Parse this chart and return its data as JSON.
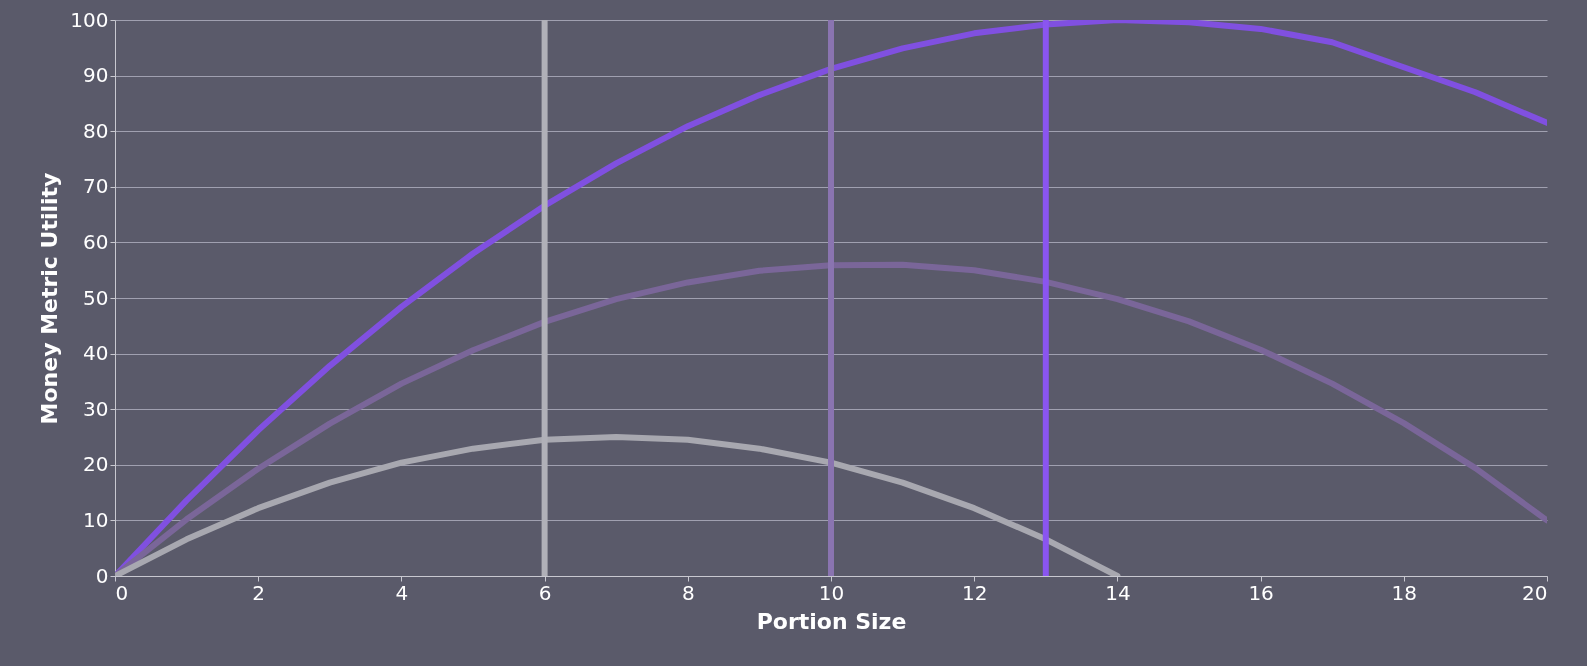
{
  "chart_data": {
    "type": "line",
    "xlabel": "Portion Size",
    "ylabel": "Money Metric Utility",
    "xlim": [
      0,
      20
    ],
    "xticks": [
      0,
      2,
      4,
      6,
      8,
      10,
      12,
      14,
      16,
      18,
      20
    ],
    "ylim": [
      0,
      100
    ],
    "yticks": [
      0,
      10,
      20,
      30,
      40,
      50,
      60,
      70,
      80,
      90,
      100
    ],
    "grid": "y",
    "marker": "none",
    "line_style": "solid",
    "series": [
      {
        "color": "#8050e0",
        "x": [
          0,
          1,
          2,
          3,
          4,
          5,
          6,
          7,
          8,
          9,
          10,
          11,
          12,
          13,
          14,
          15,
          16,
          17,
          18,
          19,
          20
        ],
        "values": [
          0,
          13.6,
          26.2,
          37.8,
          48.4,
          58,
          66.6,
          74.2,
          80.9,
          86.5,
          91.2,
          94.9,
          97.6,
          99.2,
          100,
          99.6,
          98.4,
          96,
          91.5,
          87,
          81.5
        ]
      },
      {
        "color": "#7a6699",
        "x": [
          0,
          1,
          2,
          3,
          4,
          5,
          6,
          7,
          8,
          9,
          10,
          11,
          12,
          13,
          14,
          15,
          16,
          17,
          18,
          19,
          20
        ],
        "values": [
          0,
          10.2,
          19.3,
          27.4,
          34.6,
          40.6,
          45.7,
          49.8,
          52.8,
          54.9,
          55.9,
          56,
          55,
          52.9,
          49.8,
          45.8,
          40.7,
          34.6,
          27.5,
          19.4,
          10
        ]
      },
      {
        "color": "#a8a8b0",
        "x": [
          0,
          1,
          2,
          3,
          4,
          5,
          6,
          7,
          8,
          9,
          10,
          11,
          12,
          13,
          14
        ],
        "values": [
          0,
          6.6,
          12.2,
          16.8,
          20.4,
          22.9,
          24.5,
          25,
          24.5,
          22.9,
          20.4,
          16.8,
          12.2,
          6.6,
          0
        ]
      }
    ],
    "ref_lines": [
      {
        "axis": "x",
        "value": 6,
        "color": "#b0b0b8"
      },
      {
        "axis": "x",
        "value": 10,
        "color": "#8a74b0"
      },
      {
        "axis": "x",
        "value": 13,
        "color": "#8a55f0"
      }
    ]
  }
}
